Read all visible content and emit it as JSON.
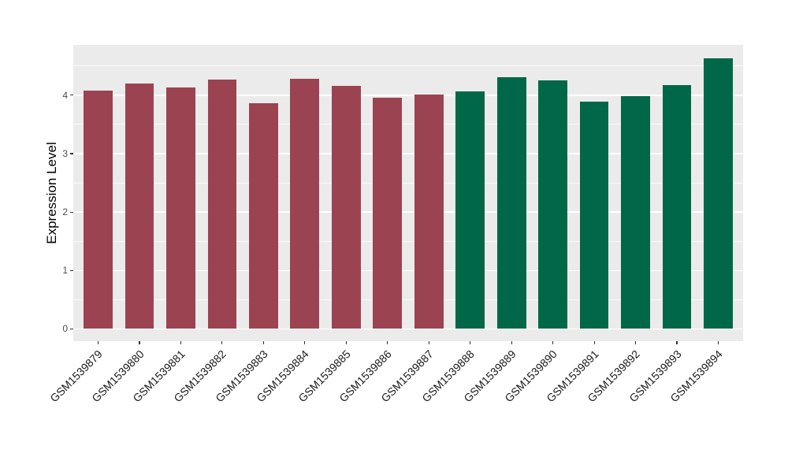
{
  "chart_data": {
    "type": "bar",
    "title": "",
    "xlabel": "",
    "ylabel": "Expression Level",
    "categories": [
      "GSM1539879",
      "GSM1539880",
      "GSM1539881",
      "GSM1539882",
      "GSM1539883",
      "GSM1539884",
      "GSM1539885",
      "GSM1539886",
      "GSM1539887",
      "GSM1539888",
      "GSM1539889",
      "GSM1539890",
      "GSM1539891",
      "GSM1539892",
      "GSM1539893",
      "GSM1539894"
    ],
    "values": [
      4.08,
      4.2,
      4.13,
      4.26,
      3.86,
      4.28,
      4.16,
      3.96,
      4.01,
      4.07,
      4.31,
      4.25,
      3.89,
      3.98,
      4.17,
      4.63
    ],
    "groups": [
      "red",
      "red",
      "red",
      "red",
      "red",
      "red",
      "red",
      "red",
      "red",
      "green",
      "green",
      "green",
      "green",
      "green",
      "green",
      "green"
    ],
    "group_colors": {
      "red": "#9C4352",
      "green": "#006848"
    },
    "y_ticks": [
      0,
      1,
      2,
      3,
      4
    ],
    "y_minor_ticks": [
      0.5,
      1.5,
      2.5,
      3.5,
      4.5
    ],
    "ylim": [
      -0.21,
      4.86
    ],
    "x_label_angle_deg": 45,
    "grid": true,
    "legend": "none",
    "panel_background": "#EBEBEB",
    "gridline_color": "#FFFFFF",
    "figure_background": "#FFFFFF"
  }
}
